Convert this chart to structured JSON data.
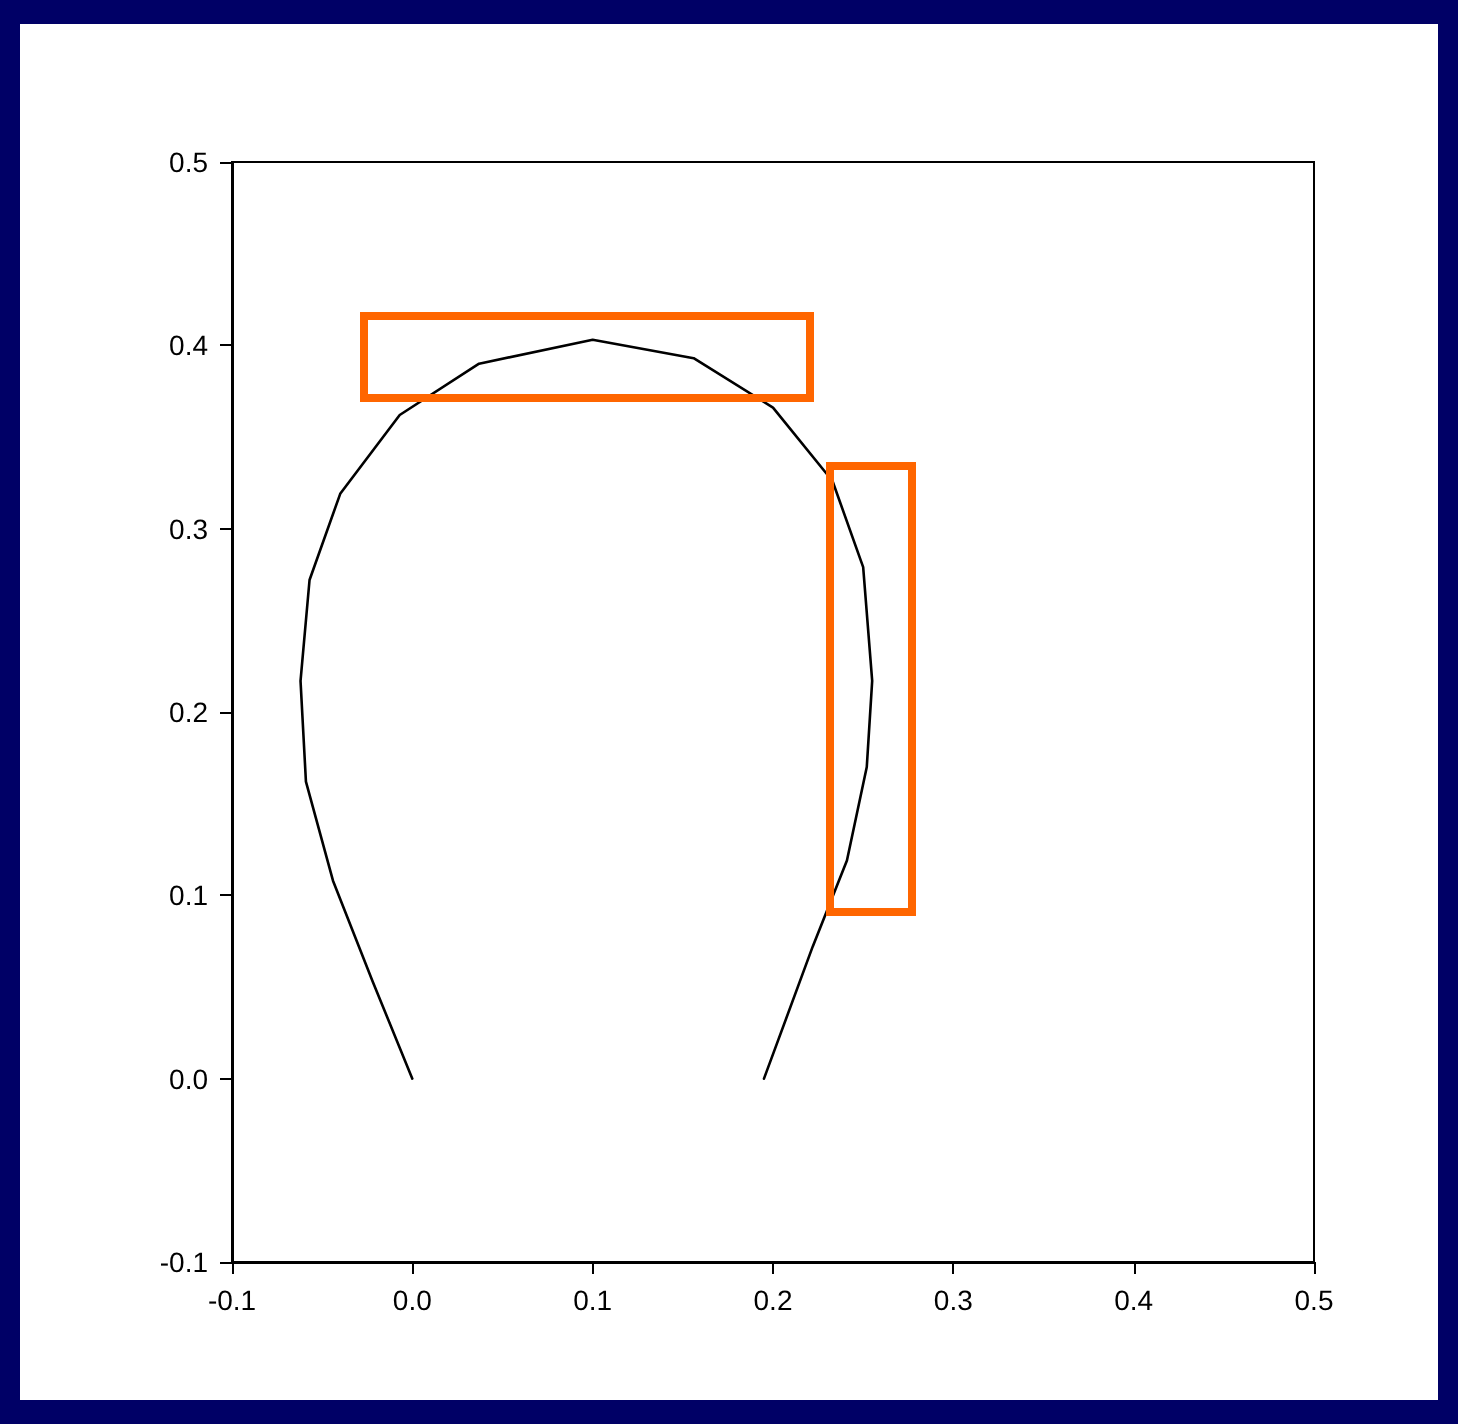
{
  "chart_data": {
    "type": "line",
    "color": "#000000",
    "x": [
      0.0,
      -0.022,
      -0.044,
      -0.059,
      -0.062,
      -0.057,
      -0.04,
      -0.007,
      0.037,
      0.1,
      0.156,
      0.2,
      0.233,
      0.25,
      0.255,
      0.252,
      0.241,
      0.222,
      0.195
    ],
    "values": [
      0.0,
      0.053,
      0.108,
      0.162,
      0.217,
      0.272,
      0.319,
      0.362,
      0.39,
      0.403,
      0.393,
      0.366,
      0.326,
      0.279,
      0.217,
      0.17,
      0.119,
      0.072,
      0.0
    ],
    "xlim": [
      -0.1,
      0.5
    ],
    "xticks": [
      -0.1,
      {
        "value": 0,
        "label": "0.0"
      },
      0.1,
      0.2,
      0.3,
      0.4,
      0.5
    ],
    "ylim": [
      -0.1,
      0.5
    ],
    "yticks": [
      -0.1,
      {
        "value": 0,
        "label": "0.0"
      },
      0.1,
      0.2,
      0.3,
      0.4,
      0.5
    ],
    "grid": false,
    "marker": "none",
    "line_style": "solid"
  }
}
